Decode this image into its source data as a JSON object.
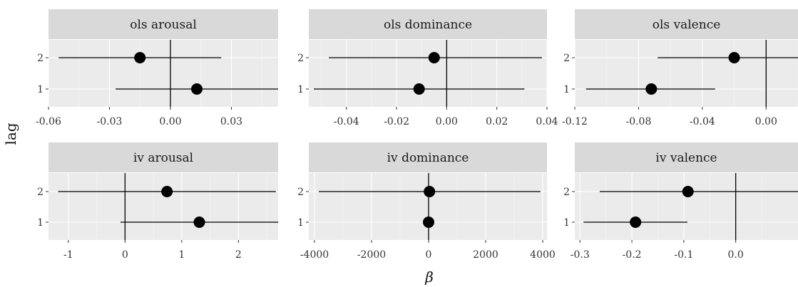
{
  "figure": {
    "y_axis_label": "lag",
    "x_axis_label": "β"
  },
  "colors": {
    "panel_background": "#ebebeb",
    "strip_background": "#d9d9d9",
    "grid_major": "#ffffff",
    "points": "#000000"
  },
  "chart_data": [
    {
      "type": "scatter",
      "panel": "ols arousal",
      "title": "ols arousal",
      "categories": [
        "1",
        "2"
      ],
      "xlim": [
        -0.06,
        0.053
      ],
      "xticks": [
        -0.06,
        -0.03,
        0.0,
        0.03
      ],
      "xtick_labels": [
        "-0.06",
        "-0.03",
        "0.00",
        "0.03"
      ],
      "points": [
        {
          "lag": "1",
          "estimate": 0.013,
          "ci_low": -0.027,
          "ci_high": 0.053
        },
        {
          "lag": "2",
          "estimate": -0.015,
          "ci_low": -0.055,
          "ci_high": 0.025
        }
      ],
      "reference_line": 0
    },
    {
      "type": "scatter",
      "panel": "ols dominance",
      "title": "ols dominance",
      "categories": [
        "1",
        "2"
      ],
      "xlim": [
        -0.055,
        0.04
      ],
      "xticks": [
        -0.04,
        -0.02,
        0.0,
        0.02,
        0.04
      ],
      "xtick_labels": [
        "-0.04",
        "-0.02",
        "0.00",
        "0.02",
        "0.04"
      ],
      "points": [
        {
          "lag": "1",
          "estimate": -0.011,
          "ci_low": -0.053,
          "ci_high": 0.031
        },
        {
          "lag": "2",
          "estimate": -0.005,
          "ci_low": -0.047,
          "ci_high": 0.038
        }
      ],
      "reference_line": 0
    },
    {
      "type": "scatter",
      "panel": "ols valence",
      "title": "ols valence",
      "categories": [
        "1",
        "2"
      ],
      "xlim": [
        -0.12,
        0.02
      ],
      "xticks": [
        -0.12,
        -0.08,
        -0.04,
        0.0
      ],
      "xtick_labels": [
        "-0.12",
        "-0.08",
        "-0.04",
        "0.00"
      ],
      "points": [
        {
          "lag": "1",
          "estimate": -0.072,
          "ci_low": -0.113,
          "ci_high": -0.032
        },
        {
          "lag": "2",
          "estimate": -0.02,
          "ci_low": -0.068,
          "ci_high": 0.02
        }
      ],
      "reference_line": 0
    },
    {
      "type": "scatter",
      "panel": "iv arousal",
      "title": "iv arousal",
      "categories": [
        "1",
        "2"
      ],
      "xlim": [
        -1.35,
        2.7
      ],
      "xticks": [
        -1,
        0,
        1,
        2
      ],
      "xtick_labels": [
        "-1",
        "0",
        "1",
        "2"
      ],
      "points": [
        {
          "lag": "1",
          "estimate": 1.31,
          "ci_low": -0.08,
          "ci_high": 2.7
        },
        {
          "lag": "2",
          "estimate": 0.74,
          "ci_low": -1.18,
          "ci_high": 2.66
        }
      ],
      "reference_line": 0
    },
    {
      "type": "scatter",
      "panel": "iv dominance",
      "title": "iv dominance",
      "categories": [
        "1",
        "2"
      ],
      "xlim": [
        -4200,
        4150
      ],
      "xticks": [
        -4000,
        -2000,
        0,
        2000,
        4000
      ],
      "xtick_labels": [
        "-4000",
        "-2000",
        "0",
        "2000",
        "4000"
      ],
      "points": [
        {
          "lag": "1",
          "estimate": 0,
          "ci_low": -20,
          "ci_high": 20
        },
        {
          "lag": "2",
          "estimate": 30,
          "ci_low": -3850,
          "ci_high": 3920
        }
      ],
      "reference_line": 0
    },
    {
      "type": "scatter",
      "panel": "iv valence",
      "title": "iv valence",
      "categories": [
        "1",
        "2"
      ],
      "xlim": [
        -0.31,
        0.12
      ],
      "xticks": [
        -0.3,
        -0.2,
        -0.1,
        0.0
      ],
      "xtick_labels": [
        "-0.3",
        "-0.2",
        "-0.1",
        "0.0"
      ],
      "points": [
        {
          "lag": "1",
          "estimate": -0.193,
          "ci_low": -0.293,
          "ci_high": -0.093
        },
        {
          "lag": "2",
          "estimate": -0.092,
          "ci_low": -0.262,
          "ci_high": 0.12
        }
      ],
      "reference_line": 0
    }
  ]
}
